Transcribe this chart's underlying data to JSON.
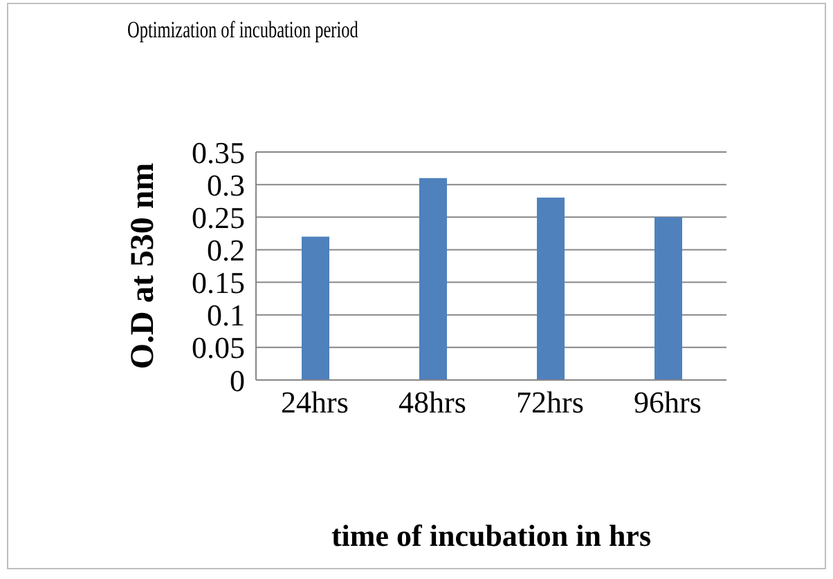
{
  "chart_data": {
    "type": "bar",
    "title": "Optimization of incubation period",
    "xlabel": "time of incubation in hrs",
    "ylabel": "O.D at 530 nm",
    "categories": [
      "24hrs",
      "48hrs",
      "72hrs",
      "96hrs"
    ],
    "series": [
      {
        "color": "#4f81bd",
        "values": [
          0.22,
          0.31,
          0.28,
          0.25
        ]
      }
    ],
    "ylim": [
      0,
      0.35
    ],
    "yticks": [
      0,
      0.05,
      0.1,
      0.15,
      0.2,
      0.25,
      0.3,
      0.35
    ],
    "grid": "y",
    "legend": false
  }
}
